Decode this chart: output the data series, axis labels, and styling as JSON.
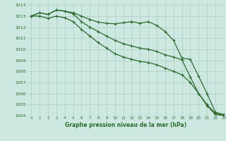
{
  "title": "Graphe pression niveau de la mer (hPa)",
  "background_color": "#cce8e0",
  "grid_color": "#aaccc4",
  "line_color": "#2d6b2d",
  "xlim": [
    -0.5,
    23
  ],
  "ylim": [
    1004,
    1014.2
  ],
  "yticks": [
    1004,
    1005,
    1006,
    1007,
    1008,
    1009,
    1010,
    1011,
    1012,
    1013,
    1014
  ],
  "xticks": [
    0,
    1,
    2,
    3,
    4,
    5,
    6,
    7,
    8,
    9,
    10,
    11,
    12,
    13,
    14,
    15,
    16,
    17,
    18,
    19,
    20,
    21,
    22,
    23
  ],
  "series": [
    [
      1013.0,
      1013.3,
      1013.15,
      1013.55,
      1013.45,
      1013.3,
      1013.0,
      1012.7,
      1012.45,
      1012.35,
      1012.3,
      1012.4,
      1012.5,
      1012.35,
      1012.5,
      1012.15,
      1011.6,
      1010.8,
      1009.2,
      1009.1,
      1007.55,
      1006.0,
      1004.3,
      1004.1
    ],
    [
      1013.0,
      1013.3,
      1013.15,
      1013.55,
      1013.45,
      1013.2,
      1012.5,
      1012.0,
      1011.6,
      1011.2,
      1010.8,
      1010.5,
      1010.3,
      1010.1,
      1010.0,
      1009.8,
      1009.5,
      1009.3,
      1009.05,
      1007.5,
      1006.0,
      1005.0,
      1004.2,
      1004.05
    ],
    [
      1013.0,
      1013.0,
      1012.8,
      1013.0,
      1012.85,
      1012.5,
      1011.8,
      1011.2,
      1010.6,
      1010.1,
      1009.6,
      1009.3,
      1009.1,
      1008.9,
      1008.8,
      1008.6,
      1008.3,
      1008.0,
      1007.7,
      1007.0,
      1006.0,
      1004.9,
      1004.1,
      1004.0
    ]
  ]
}
